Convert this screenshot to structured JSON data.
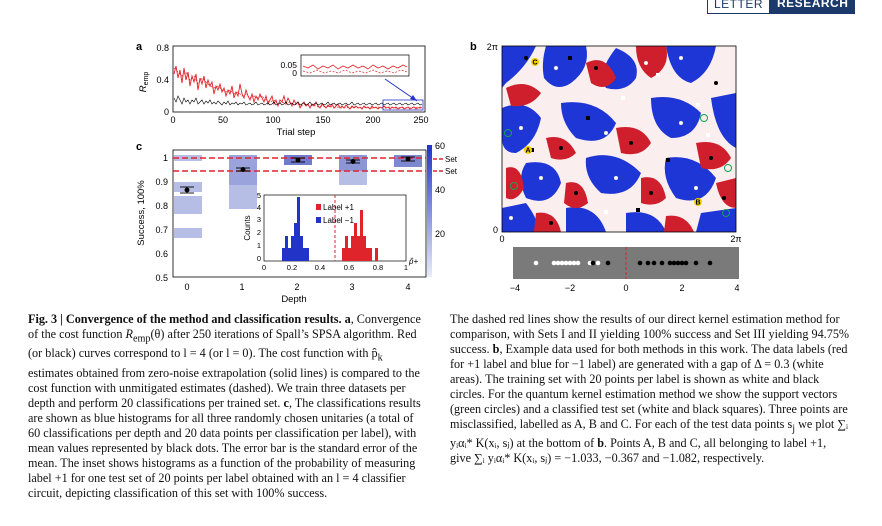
{
  "header": {
    "box1": "LETTER",
    "box2": "RESEARCH"
  },
  "panel_a": {
    "label": "a",
    "ylabel": "R",
    "ylabel_sub": "emp",
    "xlabel": "Trial step",
    "yticks": [
      "0.8",
      "0.4",
      "0"
    ],
    "xticks": [
      "0",
      "50",
      "100",
      "150",
      "200",
      "250"
    ],
    "inset_yticks": [
      "0.05",
      "0"
    ]
  },
  "panel_b": {
    "label": "b",
    "ytick_top": "2π",
    "ytick_bottom": "0",
    "xtick_left": "0",
    "xtick_right": "2π",
    "strip_ticks": [
      "−4",
      "−2",
      "0",
      "2",
      "4"
    ],
    "markers": [
      "A",
      "B",
      "C"
    ]
  },
  "panel_c": {
    "label": "c",
    "ylabel": "Success, 100%",
    "xlabel": "Depth",
    "yticks": [
      "1",
      "0.9",
      "0.8",
      "0.7",
      "0.6",
      "0.5"
    ],
    "xticks": [
      "0",
      "1",
      "2",
      "3",
      "4"
    ],
    "legend": [
      "Set I & II",
      "Set III"
    ],
    "colorbar_ticks": [
      "60",
      "40",
      "20"
    ],
    "inset": {
      "ylabel": "Counts",
      "yticks": [
        "5",
        "4",
        "3",
        "2",
        "1",
        "0"
      ],
      "xticks": [
        "0",
        "0.2",
        "0.4",
        "0.6",
        "0.8",
        "1"
      ],
      "legend": [
        "Label +1",
        "Label −1"
      ],
      "phat": "p̂+"
    }
  },
  "caption_left": {
    "title": "Fig. 3 | Convergence of the method and classification results.",
    "a_label": "a",
    "a_text1": ", Convergence of the cost function ",
    "a_rexp": "R",
    "a_rsub": "emp",
    "a_text2": "(θ) after 250 iterations of Spall’s SPSA algorithm. Red (or black) curves correspond to l = 4 (or l = 0). The cost function with p̂",
    "a_psub": "k",
    "a_text3": " estimates obtained from zero-noise extrapolation (solid lines) is compared to the cost function with unmitigated estimates (dashed). We train three datasets per depth and perform 20 classifications per trained set. ",
    "c_label": "c",
    "c_text": ", The classifications results are shown as blue histograms for all three randomly chosen unitaries (a total of 60 classifications per depth and 20 data points per classification per label), with mean values represented by black dots. The error bar is the standard error of the mean. The inset shows histograms as a function of the probability of measuring label +1 for one test set of 20 points per label obtained with an l = 4 classifier circuit, depicting classification of this set with 100% success."
  },
  "caption_right": {
    "text1": "The dashed red lines show the results of our direct kernel estimation method for comparison, with Sets I and II yielding 100% success and Set III yielding 94.75% success. ",
    "b_label": "b",
    "text2": ", Example data used for both methods in this work. The data labels (red for +1 label and blue for −1 label) are generated with a gap of Δ = 0.3 (white areas). The training set with 20 points per label is shown as white and black circles. For the quantum kernel estimation method we show the support vectors (green circles) and a classified test set (white and black squares). Three points are misclassified, labelled as A, B and C. For each of the test data points s",
    "sj": "j",
    "text3": " we plot ∑",
    "text4": "ᵢ yᵢαᵢ* K(xᵢ, sⱼ) at the bottom of ",
    "b2": "b",
    "text5": ". Points A, B and C, all belonging to label +1, give ∑ᵢ yᵢαᵢ* K(xᵢ, sⱼ) = −1.033, −0.367 and −1.082, respectively."
  },
  "colors": {
    "red": "#e0242b",
    "blue": "#2233c8",
    "navy": "#1b3a6b",
    "hist": "#b7bee6"
  }
}
